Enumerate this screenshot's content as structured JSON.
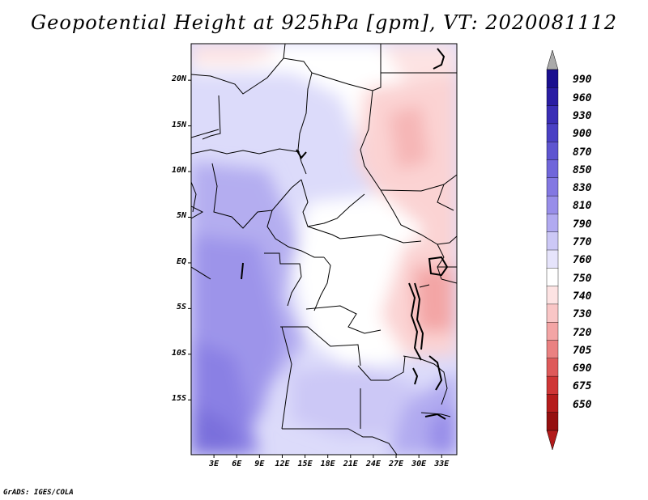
{
  "title": "Geopotential Height at 925hPa [gpm], VT: 2020081112",
  "credit": "GrADS: IGES/COLA",
  "map": {
    "lat_range": [
      -21,
      24
    ],
    "lon_range": [
      0,
      35
    ],
    "lat_labels": [
      "20N",
      "15N",
      "10N",
      "5N",
      "EQ",
      "5S",
      "10S",
      "15S"
    ],
    "lat_values": [
      20,
      15,
      10,
      5,
      0,
      -5,
      -10,
      -15
    ],
    "lon_labels": [
      "3E",
      "6E",
      "9E",
      "12E",
      "15E",
      "18E",
      "21E",
      "24E",
      "27E",
      "30E",
      "33E"
    ],
    "lon_values": [
      3,
      6,
      9,
      12,
      15,
      18,
      21,
      24,
      27,
      30,
      33
    ]
  },
  "colorbar": {
    "levels": [
      "990",
      "960",
      "930",
      "900",
      "870",
      "850",
      "830",
      "810",
      "790",
      "770",
      "760",
      "750",
      "740",
      "730",
      "720",
      "705",
      "690",
      "675",
      "650"
    ],
    "colors": [
      "#1a0f8f",
      "#2a1da3",
      "#3a2eb5",
      "#4a40c4",
      "#5e55d0",
      "#7066da",
      "#8378e2",
      "#988ee9",
      "#b1aaf0",
      "#ccc8f6",
      "#e6e4fb",
      "#ffffff",
      "#fde3e3",
      "#f9c6c6",
      "#f3a5a5",
      "#ea8181",
      "#de5a5a",
      "#cf3636",
      "#b51c1c",
      "#951010"
    ],
    "over_color": "#aaaaaa",
    "under_color": "#b21a1a"
  }
}
